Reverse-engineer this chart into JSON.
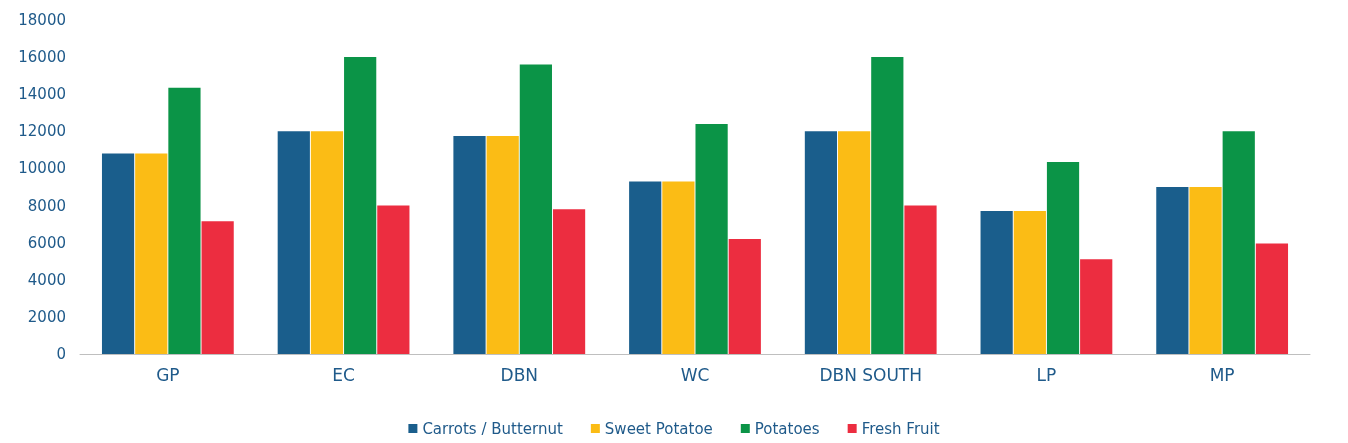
{
  "chart_data": {
    "type": "bar",
    "categories": [
      "GP",
      "EC",
      "DBN",
      "WC",
      "DBN SOUTH",
      "LP",
      "MP"
    ],
    "series": [
      {
        "name": "Carrots / Butternut",
        "color": "#1a5e8c",
        "values": [
          10800,
          12000,
          11750,
          9300,
          12000,
          7700,
          9000
        ]
      },
      {
        "name": "Sweet Potatoe",
        "color": "#fbbc15",
        "values": [
          10800,
          12000,
          11750,
          9300,
          12000,
          7700,
          9000
        ]
      },
      {
        "name": "Potatoes",
        "color": "#0b9447",
        "values": [
          14350,
          16000,
          15600,
          12400,
          16000,
          10350,
          12000
        ]
      },
      {
        "name": "Fresh Fruit",
        "color": "#ec2d40",
        "values": [
          7150,
          8000,
          7800,
          6200,
          8000,
          5100,
          5950
        ]
      }
    ],
    "ylim": [
      0,
      18000
    ],
    "yticks": [
      0,
      2000,
      4000,
      6000,
      8000,
      10000,
      12000,
      14000,
      16000,
      18000
    ],
    "grid": false,
    "legend": "bottom"
  }
}
